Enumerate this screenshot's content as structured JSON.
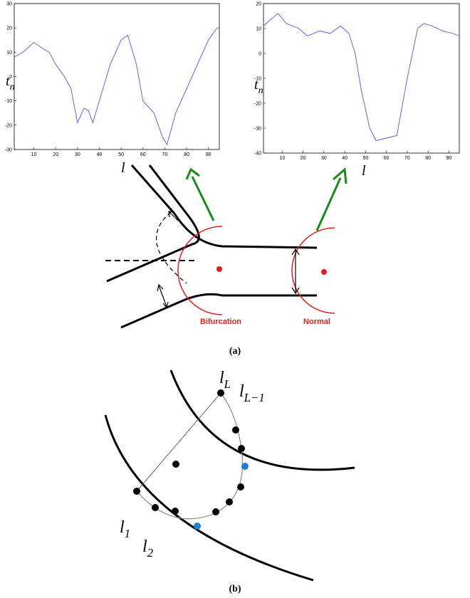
{
  "chart_data": [
    {
      "type": "line",
      "ylabel": {
        "main": "t",
        "sub": "n"
      },
      "xlabel": "l",
      "x": [
        1,
        5,
        10,
        15,
        17,
        20,
        24,
        27,
        30,
        33,
        35,
        37,
        40,
        45,
        50,
        53,
        57,
        60,
        65,
        69,
        71,
        75,
        80,
        85,
        90,
        94,
        95
      ],
      "series": [
        {
          "color": "#4a5bd4",
          "values": [
            8,
            10,
            14,
            11,
            10,
            5,
            0,
            -5,
            -19,
            -13,
            -14,
            -19,
            -10,
            5,
            15,
            17,
            5,
            -10,
            -15,
            -25,
            -28,
            -15,
            -5,
            5,
            15,
            20,
            20
          ]
        }
      ],
      "xlim": [
        1,
        95
      ],
      "ylim": [
        -30,
        30
      ],
      "xticks": [
        10,
        20,
        30,
        40,
        50,
        60,
        70,
        80,
        90
      ],
      "yticks": [
        -30,
        -20,
        -10,
        0,
        10,
        20,
        30
      ]
    },
    {
      "type": "line",
      "ylabel": {
        "main": "t",
        "sub": "n"
      },
      "xlabel": "l",
      "x": [
        1,
        5,
        8,
        12,
        18,
        22,
        28,
        33,
        38,
        42,
        45,
        48,
        52,
        55,
        60,
        65,
        70,
        75,
        78,
        82,
        87,
        92,
        95
      ],
      "series": [
        {
          "color": "#4a5bd4",
          "values": [
            11,
            14,
            16,
            12,
            10,
            7,
            9,
            8,
            11,
            8,
            0,
            -15,
            -30,
            -35,
            -34,
            -33,
            -10,
            10,
            12,
            11,
            9,
            8,
            7
          ]
        }
      ],
      "xlim": [
        1,
        95
      ],
      "ylim": [
        -40,
        20
      ],
      "xticks": [
        10,
        20,
        30,
        40,
        50,
        60,
        70,
        80,
        90
      ],
      "yticks": [
        -40,
        -30,
        -20,
        -10,
        0,
        10,
        20
      ]
    }
  ],
  "diagram": {
    "bifurcation": "Bifurcation",
    "normal": "Normal",
    "caption_a": "(a)",
    "caption_b": "(b)",
    "labels": [
      {
        "main": "l",
        "sub": "L"
      },
      {
        "main": "l",
        "sub": "L−1"
      },
      {
        "main": "l",
        "sub": "1"
      },
      {
        "main": "l",
        "sub": "2"
      }
    ]
  }
}
